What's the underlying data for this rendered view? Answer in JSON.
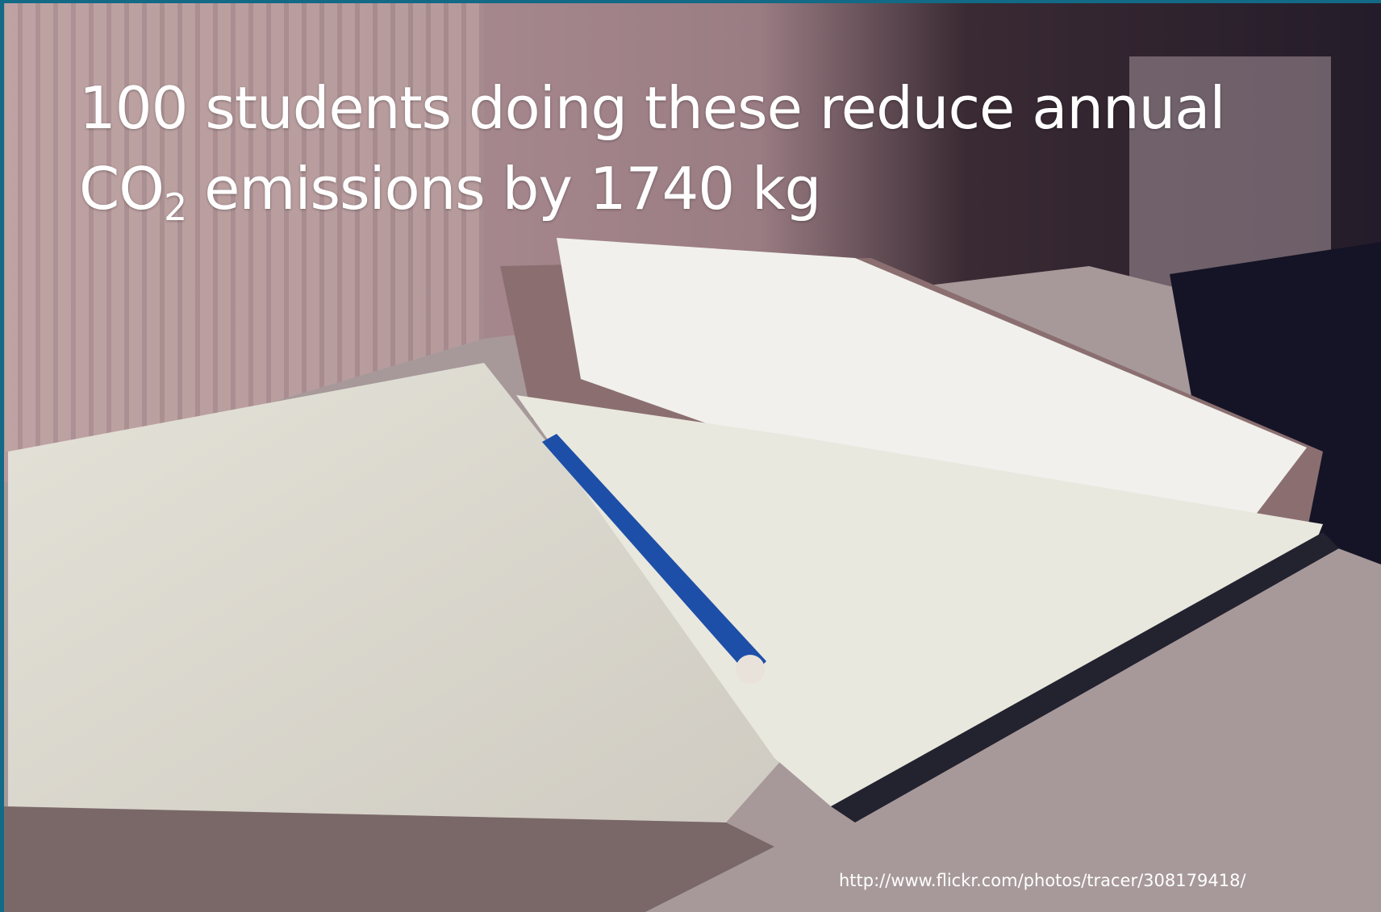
{
  "slide": {
    "title": {
      "line1": "100 students doing these reduce annual",
      "co": "CO",
      "subscript": "2",
      "line2_rest": " emissions by 1740 kg"
    },
    "credit": "http://www.flickr.com/photos/tracer/308179418/"
  }
}
